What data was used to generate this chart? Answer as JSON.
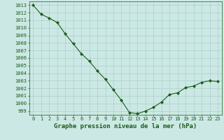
{
  "x": [
    0,
    1,
    2,
    3,
    4,
    5,
    6,
    7,
    8,
    9,
    10,
    11,
    12,
    13,
    14,
    15,
    16,
    17,
    18,
    19,
    20,
    21,
    22,
    23
  ],
  "y": [
    1013.0,
    1011.8,
    1011.3,
    1010.7,
    1009.2,
    1007.9,
    1006.6,
    1005.6,
    1004.3,
    1003.2,
    1001.8,
    1000.4,
    998.8,
    998.65,
    999.0,
    999.5,
    1000.2,
    1001.2,
    1001.4,
    1002.1,
    1002.3,
    1002.8,
    1003.0,
    1002.9
  ],
  "ylim_min": 998.5,
  "ylim_max": 1013.5,
  "yticks": [
    999,
    1000,
    1001,
    1002,
    1003,
    1004,
    1005,
    1006,
    1007,
    1008,
    1009,
    1010,
    1011,
    1012,
    1013
  ],
  "xticks": [
    0,
    1,
    2,
    3,
    4,
    5,
    6,
    7,
    8,
    9,
    10,
    11,
    12,
    13,
    14,
    15,
    16,
    17,
    18,
    19,
    20,
    21,
    22,
    23
  ],
  "xlabel": "Graphe pression niveau de la mer (hPa)",
  "line_color": "#1a5c1a",
  "marker": "D",
  "marker_size": 2.2,
  "bg_color": "#cce8e4",
  "grid_color": "#aacfc9",
  "tick_color": "#1a5c1a",
  "label_color": "#1a5c1a",
  "tick_fontsize": 5.0,
  "xlabel_fontsize": 6.5,
  "linewidth": 0.8
}
